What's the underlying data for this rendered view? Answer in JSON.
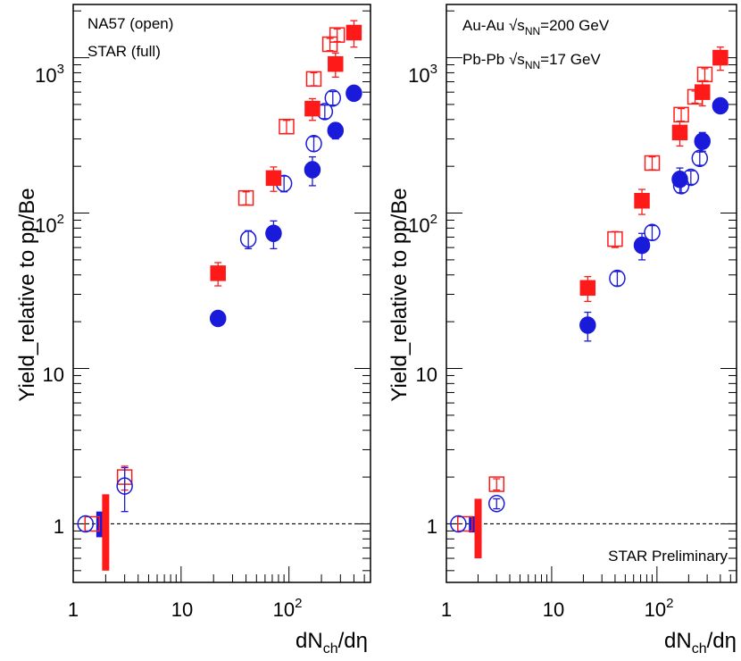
{
  "colors": {
    "red": "#ff1a1a",
    "blue": "#1a1adb",
    "frame": "#000000"
  },
  "chart_data": [
    {
      "type": "scatter",
      "panel": "left",
      "x_scale": "log",
      "y_scale": "log",
      "xlim": [
        1,
        570
      ],
      "ylim": [
        0.42,
        2200
      ],
      "xlabel": "dNch/dη",
      "ylabel": "Yield_relative to pp/Be",
      "x_tick_labels": [
        "1",
        "10",
        "10²"
      ],
      "y_tick_labels": [
        "1",
        "10",
        "10²",
        "10³"
      ],
      "legend": {
        "lines": [
          "NA57 (open)",
          "STAR (full)"
        ]
      },
      "reference_line": {
        "y": 1,
        "style": "dashed"
      },
      "series": [
        {
          "name": "NA57 red (open squares)",
          "color": "red",
          "marker": "square",
          "filled": false,
          "points": [
            {
              "x": 1.5,
              "y": 1.0
            },
            {
              "x": 3.0,
              "y": 2.0,
              "err": 0.35
            },
            {
              "x": 40,
              "y": 125,
              "err": 12
            },
            {
              "x": 95,
              "y": 360,
              "err": 35
            },
            {
              "x": 170,
              "y": 730,
              "err": 70
            },
            {
              "x": 240,
              "y": 1220,
              "err": 110
            },
            {
              "x": 280,
              "y": 1400,
              "err": 130
            }
          ]
        },
        {
          "name": "NA57 blue (open circles)",
          "color": "blue",
          "marker": "circle",
          "filled": false,
          "points": [
            {
              "x": 1.3,
              "y": 1.0
            },
            {
              "x": 3.0,
              "y": 1.75,
              "err": 0.55
            },
            {
              "x": 42,
              "y": 68,
              "err": 9
            },
            {
              "x": 90,
              "y": 155,
              "err": 18
            },
            {
              "x": 170,
              "y": 280,
              "err": 30
            },
            {
              "x": 215,
              "y": 450,
              "err": 45
            },
            {
              "x": 255,
              "y": 550,
              "err": 55
            }
          ]
        },
        {
          "name": "STAR red (full squares)",
          "color": "red",
          "marker": "square",
          "filled": true,
          "points": [
            {
              "x": 22,
              "y": 41,
              "err": 7
            },
            {
              "x": 72,
              "y": 168,
              "err": 30
            },
            {
              "x": 165,
              "y": 470,
              "err": 75
            },
            {
              "x": 270,
              "y": 910,
              "err": 160
            },
            {
              "x": 400,
              "y": 1450,
              "err": 280
            }
          ]
        },
        {
          "name": "STAR blue (full circles)",
          "color": "blue",
          "marker": "circle",
          "filled": true,
          "points": [
            {
              "x": 22,
              "y": 21,
              "err": 1.5
            },
            {
              "x": 72,
              "y": 74,
              "err": 15
            },
            {
              "x": 165,
              "y": 190,
              "err": 40
            },
            {
              "x": 270,
              "y": 340,
              "err": 40
            },
            {
              "x": 400,
              "y": 590,
              "err": 40
            }
          ]
        }
      ],
      "syst_bars": [
        {
          "color": "blue",
          "x": 1.75,
          "ylo": 0.82,
          "yhi": 1.2
        },
        {
          "color": "red",
          "x": 2.0,
          "ylo": 0.5,
          "yhi": 1.55
        }
      ]
    },
    {
      "type": "scatter",
      "panel": "right",
      "x_scale": "log",
      "y_scale": "log",
      "xlim": [
        1,
        570
      ],
      "ylim": [
        0.42,
        2200
      ],
      "xlabel": "dNch/dη",
      "ylabel": "Yield_relative to pp/Be",
      "x_tick_labels": [
        "1",
        "10",
        "10²"
      ],
      "y_tick_labels": [
        "1",
        "10",
        "10²",
        "10³"
      ],
      "legend": {
        "lines": [
          "Au-Au √sNN=200 GeV",
          "Pb-Pb √sNN=17 GeV"
        ]
      },
      "annotation": "STAR Preliminary",
      "reference_line": {
        "y": 1,
        "style": "dashed"
      },
      "series": [
        {
          "name": "17 GeV red (open squares)",
          "color": "red",
          "marker": "square",
          "filled": false,
          "points": [
            {
              "x": 1.5,
              "y": 1.0
            },
            {
              "x": 3.0,
              "y": 1.8,
              "err": 0.15
            },
            {
              "x": 40,
              "y": 68,
              "err": 8
            },
            {
              "x": 90,
              "y": 210,
              "err": 20
            },
            {
              "x": 170,
              "y": 430,
              "err": 40
            },
            {
              "x": 230,
              "y": 560,
              "err": 50
            },
            {
              "x": 285,
              "y": 780,
              "err": 70
            }
          ]
        },
        {
          "name": "17 GeV blue (open circles)",
          "color": "blue",
          "marker": "circle",
          "filled": false,
          "points": [
            {
              "x": 1.3,
              "y": 1.0
            },
            {
              "x": 3.0,
              "y": 1.35,
              "err": 0.1
            },
            {
              "x": 42,
              "y": 38,
              "err": 4
            },
            {
              "x": 90,
              "y": 75,
              "err": 8
            },
            {
              "x": 170,
              "y": 150,
              "err": 15
            },
            {
              "x": 210,
              "y": 170,
              "err": 17
            },
            {
              "x": 255,
              "y": 225,
              "err": 22
            }
          ]
        },
        {
          "name": "200 GeV red (full squares)",
          "color": "red",
          "marker": "square",
          "filled": true,
          "points": [
            {
              "x": 22,
              "y": 33,
              "err": 6
            },
            {
              "x": 72,
              "y": 120,
              "err": 22
            },
            {
              "x": 165,
              "y": 330,
              "err": 60
            },
            {
              "x": 270,
              "y": 600,
              "err": 110
            },
            {
              "x": 400,
              "y": 1000,
              "err": 170
            }
          ]
        },
        {
          "name": "200 GeV blue (full circles)",
          "color": "blue",
          "marker": "circle",
          "filled": true,
          "points": [
            {
              "x": 22,
              "y": 19,
              "err": 4
            },
            {
              "x": 72,
              "y": 62,
              "err": 12
            },
            {
              "x": 165,
              "y": 165,
              "err": 30
            },
            {
              "x": 270,
              "y": 290,
              "err": 40
            },
            {
              "x": 400,
              "y": 490,
              "err": 40
            }
          ]
        }
      ],
      "syst_bars": [
        {
          "color": "blue",
          "x": 1.75,
          "ylo": 0.88,
          "yhi": 1.12
        },
        {
          "color": "red",
          "x": 2.0,
          "ylo": 0.6,
          "yhi": 1.45
        }
      ]
    }
  ]
}
